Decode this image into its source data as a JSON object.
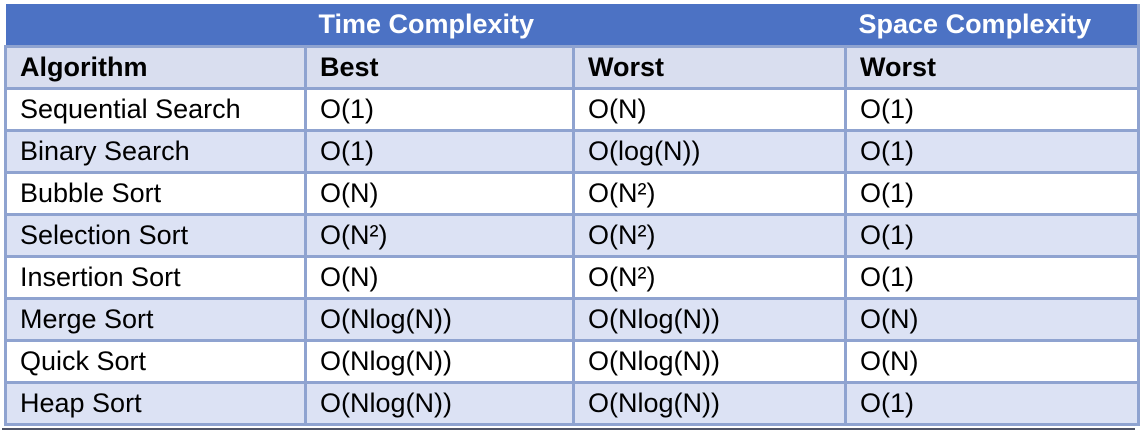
{
  "colors": {
    "header_bg": "#4c72c4",
    "header_text": "#ffffff",
    "subheader_bg": "#d9deef",
    "band_bg": "#dce2f4",
    "row_bg": "#ffffff",
    "border": "#8fa3d0",
    "text": "#000000",
    "bottom_edge_line": "#4e5366"
  },
  "chart_data": {
    "type": "table",
    "column_groups": [
      {
        "label": "",
        "span": 1
      },
      {
        "label": "Time Complexity",
        "span": 2
      },
      {
        "label": "Space Complexity",
        "span": 1
      }
    ],
    "columns": [
      "Algorithm",
      "Best",
      "Worst",
      "Worst"
    ],
    "rows": [
      [
        "Sequential Search",
        "O(1)",
        "O(N)",
        "O(1)"
      ],
      [
        "Binary Search",
        "O(1)",
        "O(log(N))",
        "O(1)"
      ],
      [
        "Bubble Sort",
        "O(N)",
        "O(N²)",
        "O(1)"
      ],
      [
        "Selection Sort",
        "O(N²)",
        "O(N²)",
        "O(1)"
      ],
      [
        "Insertion Sort",
        "O(N)",
        "O(N²)",
        "O(1)"
      ],
      [
        "Merge Sort",
        "O(Nlog(N))",
        "O(Nlog(N))",
        "O(N)"
      ],
      [
        "Quick Sort",
        "O(Nlog(N))",
        "O(Nlog(N))",
        "O(N)"
      ],
      [
        "Heap Sort",
        "O(Nlog(N))",
        "O(Nlog(N))",
        "O(1)"
      ]
    ],
    "layout": {
      "banded_rows": true,
      "band_pattern": "even rows white, odd rows light periwinkle",
      "alignment": "left"
    }
  }
}
